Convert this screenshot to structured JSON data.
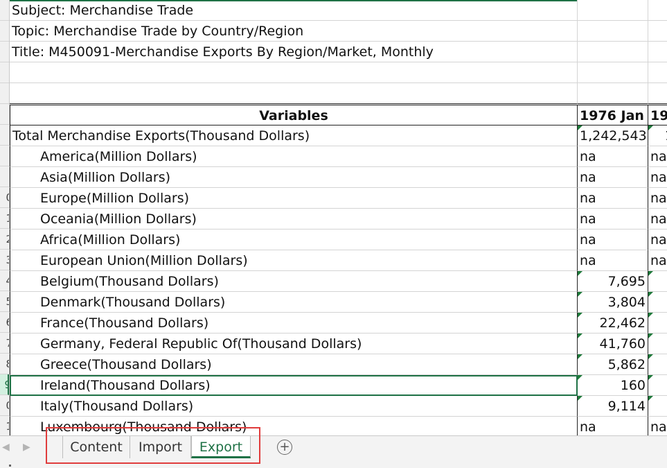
{
  "meta_rows": [
    "Subject: Merchandise Trade",
    "Topic: Merchandise Trade by Country/Region",
    "Title: M450091-Merchandise Exports By Region/Market, Monthly"
  ],
  "row_numbers": [
    "",
    "",
    "",
    "",
    "",
    "",
    "",
    "",
    "",
    "0",
    "1",
    "2",
    "3",
    "4",
    "5",
    "6",
    "7",
    "8",
    "9",
    "0",
    "1"
  ],
  "header": {
    "variables": "Variables",
    "col1": "1976 Jan",
    "col2": "19"
  },
  "rows": [
    {
      "label": "Total Merchandise Exports(Thousand Dollars)",
      "v1": "1,242,543",
      "v2": "1",
      "indent": false,
      "num": true
    },
    {
      "label": "America(Million Dollars)",
      "v1": "na",
      "v2": "na",
      "indent": true,
      "num": false
    },
    {
      "label": "Asia(Million Dollars)",
      "v1": "na",
      "v2": "na",
      "indent": true,
      "num": false
    },
    {
      "label": "Europe(Million Dollars)",
      "v1": "na",
      "v2": "na",
      "indent": true,
      "num": false
    },
    {
      "label": "Oceania(Million Dollars)",
      "v1": "na",
      "v2": "na",
      "indent": true,
      "num": false
    },
    {
      "label": "Africa(Million Dollars)",
      "v1": "na",
      "v2": "na",
      "indent": true,
      "num": false
    },
    {
      "label": "European Union(Million Dollars)",
      "v1": "na",
      "v2": "na",
      "indent": true,
      "num": false
    },
    {
      "label": "Belgium(Thousand Dollars)",
      "v1": "7,695",
      "v2": "",
      "indent": true,
      "num": true
    },
    {
      "label": "Denmark(Thousand Dollars)",
      "v1": "3,804",
      "v2": "",
      "indent": true,
      "num": true
    },
    {
      "label": "France(Thousand Dollars)",
      "v1": "22,462",
      "v2": "",
      "indent": true,
      "num": true
    },
    {
      "label": "Germany, Federal Republic Of(Thousand Dollars)",
      "v1": "41,760",
      "v2": "",
      "indent": true,
      "num": true
    },
    {
      "label": "Greece(Thousand Dollars)",
      "v1": "5,862",
      "v2": "",
      "indent": true,
      "num": true
    },
    {
      "label": "Ireland(Thousand Dollars)",
      "v1": "160",
      "v2": "",
      "indent": true,
      "num": true
    },
    {
      "label": "Italy(Thousand Dollars)",
      "v1": "9,114",
      "v2": "",
      "indent": true,
      "num": true
    },
    {
      "label": "Luxembourg(Thousand Dollars)",
      "v1": "na",
      "v2": "na",
      "indent": true,
      "num": false
    }
  ],
  "tabs": {
    "nav_prev": "◀",
    "nav_next": "▶",
    "content": "Content",
    "import": "Import",
    "export": "Export",
    "add": "+"
  },
  "colors": {
    "accent": "#1e7145",
    "highlight": "#e03c3c"
  }
}
